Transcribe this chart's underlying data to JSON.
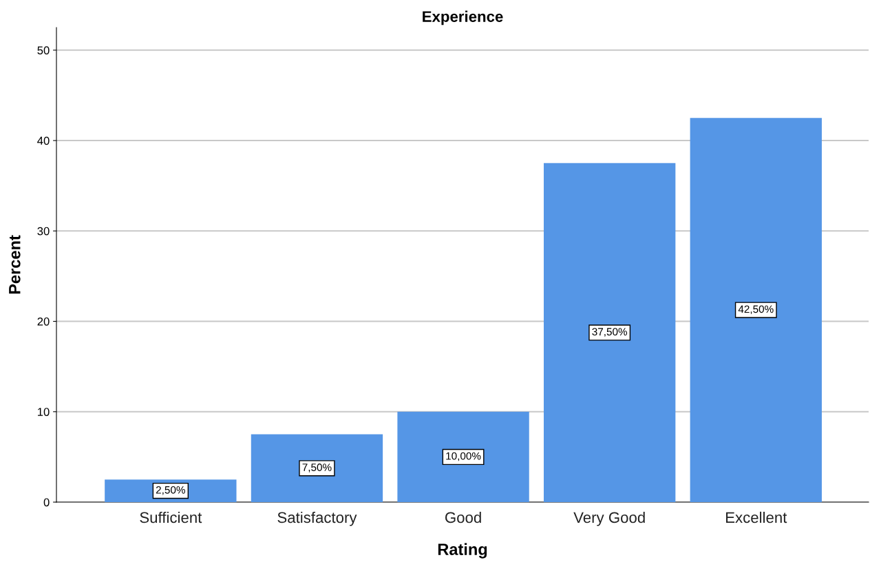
{
  "chart_data": {
    "type": "bar",
    "title": "Experience",
    "xlabel": "Rating",
    "ylabel": "Percent",
    "categories": [
      "Sufficient",
      "Satisfactory",
      "Good",
      "Very Good",
      "Excellent"
    ],
    "values": [
      2.5,
      7.5,
      10,
      37.5,
      42.5
    ],
    "value_labels": [
      "2,50%",
      "7,50%",
      "10,00%",
      "37,50%",
      "42,50%"
    ],
    "color": "#5596e6",
    "ylim": [
      0,
      52.5
    ],
    "yticks": [
      0,
      10,
      20,
      30,
      40,
      50
    ],
    "grid": "y",
    "legend": false
  }
}
